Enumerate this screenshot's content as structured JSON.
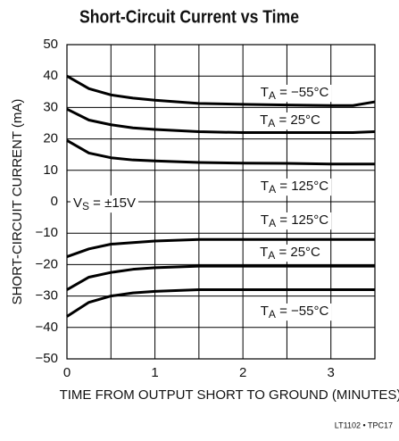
{
  "chart_data": {
    "type": "line",
    "title": "Short-Circuit Current vs Time",
    "x_label": "TIME FROM OUTPUT SHORT TO GROUND (MINUTES)",
    "y_label": "SHORT-CIRCUIT CURRENT (mA)",
    "annotation": "VS = ±15V",
    "footer": "LT1102 • TPC17",
    "x": [
      0,
      0.25,
      0.5,
      0.75,
      1,
      1.5,
      2,
      2.5,
      3,
      3.25,
      3.5
    ],
    "series": [
      {
        "name": "TA = −55°C",
        "color": "#000000",
        "values": [
          40,
          36,
          34,
          33,
          32.3,
          31.3,
          31,
          30.8,
          30.6,
          30.6,
          31.8
        ]
      },
      {
        "name": "TA = 25°C",
        "color": "#000000",
        "values": [
          29.5,
          26,
          24.5,
          23.5,
          23,
          22.3,
          22,
          22,
          22,
          22,
          22.3
        ]
      },
      {
        "name": "TA = 125°C",
        "color": "#000000",
        "values": [
          19.5,
          15.5,
          14,
          13.3,
          13,
          12.5,
          12.3,
          12.2,
          12,
          12,
          12
        ]
      },
      {
        "name": "TA = 125°C",
        "color": "#000000",
        "values": [
          -17.5,
          -15,
          -13.5,
          -13,
          -12.5,
          -12,
          -12,
          -12,
          -12,
          -12,
          -12
        ]
      },
      {
        "name": "TA = 25°C",
        "color": "#000000",
        "values": [
          -28,
          -24,
          -22.5,
          -21.5,
          -21,
          -20.5,
          -20.5,
          -20.5,
          -20.5,
          -20.5,
          -20.5
        ]
      },
      {
        "name": "TA = −55°C",
        "color": "#000000",
        "values": [
          -36.5,
          -32,
          -30,
          -29,
          -28.5,
          -28,
          -28,
          -28,
          -28,
          -28,
          -28
        ]
      }
    ],
    "xlim": [
      0,
      3.5
    ],
    "xticks": [
      0,
      1,
      2,
      3
    ],
    "xminor": [
      0.5,
      1.5,
      2.5,
      3.5
    ],
    "ylim": [
      -50,
      50
    ],
    "yticks": [
      {
        "value": -50,
        "label": "−50"
      },
      {
        "value": -40,
        "label": "−40"
      },
      {
        "value": -30,
        "label": "−30"
      },
      {
        "value": -20,
        "label": "−20"
      },
      {
        "value": -10,
        "label": "−10"
      },
      0,
      10,
      20,
      30,
      40,
      50
    ],
    "grid": true
  }
}
